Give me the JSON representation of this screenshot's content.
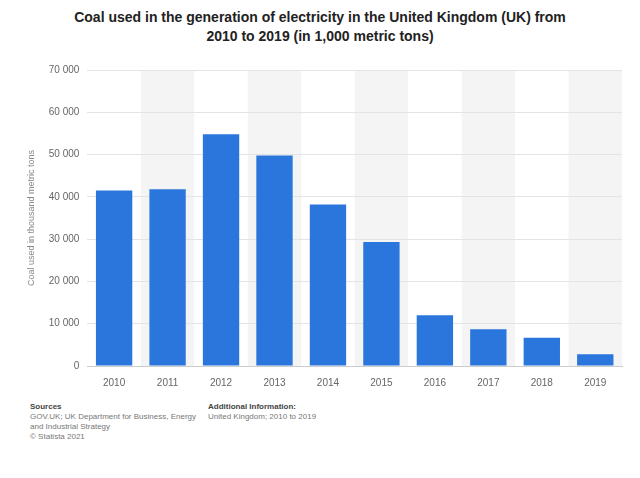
{
  "chart_data": {
    "type": "bar",
    "title": "Coal used in the generation of electricity in the United Kingdom (UK) from 2010 to 2019 (in 1,000 metric tons)",
    "y_label": "Coal used in thousand metric tons",
    "categories": [
      "2010",
      "2011",
      "2012",
      "2013",
      "2014",
      "2015",
      "2016",
      "2017",
      "2018",
      "2019"
    ],
    "values": [
      41500,
      41800,
      54800,
      49800,
      38200,
      29300,
      12000,
      8700,
      6700,
      2800
    ],
    "color": "#2a76dd",
    "ylim": [
      0,
      70000
    ],
    "yticks": [
      0,
      {
        "value": 10000,
        "label": "10 000"
      },
      {
        "value": 20000,
        "label": "20 000"
      },
      {
        "value": 30000,
        "label": "30 000"
      },
      {
        "value": 40000,
        "label": "40 000"
      },
      {
        "value": 50000,
        "label": "50 000"
      },
      {
        "value": 60000,
        "label": "60 000"
      },
      {
        "value": 70000,
        "label": "70 000"
      }
    ],
    "grid": true,
    "data_labels": false
  },
  "footer": {
    "sources_title": "Sources",
    "sources": "GOV.UK; UK Department for Business, Energy and Industrial Strategy",
    "copyright": "© Statista 2021",
    "info_title": "Additional Information:",
    "info": "United Kingdom; 2010 to 2019"
  }
}
